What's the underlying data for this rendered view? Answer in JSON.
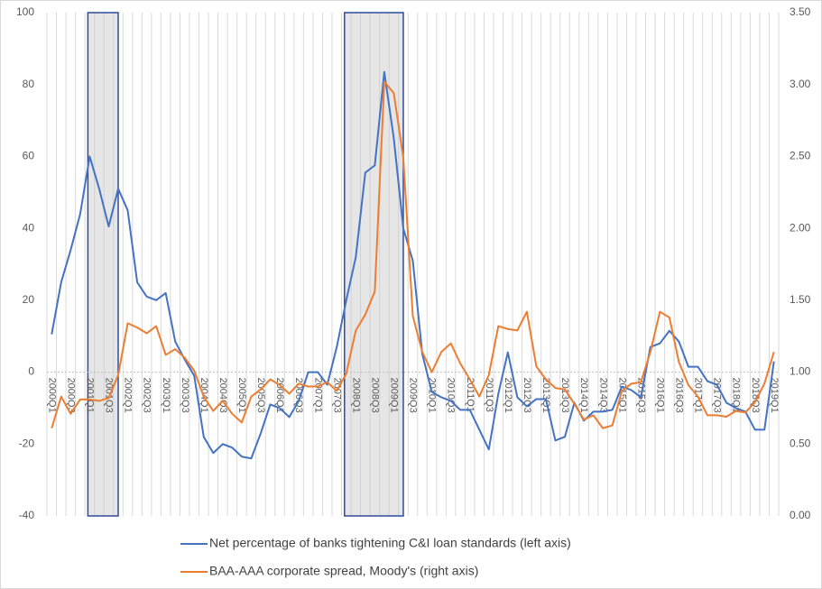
{
  "chart_data": {
    "type": "line",
    "categories": [
      "2000Q1",
      null,
      "2000Q3",
      null,
      "2001Q1",
      null,
      "2001Q3",
      null,
      "2002Q1",
      null,
      "2002Q3",
      null,
      "2003Q1",
      null,
      "2003Q3",
      null,
      "2004Q1",
      null,
      "2004Q3",
      null,
      "2005Q1",
      null,
      "2005Q3",
      null,
      "2006Q1",
      null,
      "2006Q3",
      null,
      "2007Q1",
      null,
      "2007Q3",
      null,
      "2008Q1",
      null,
      "2008Q3",
      null,
      "2009Q1",
      null,
      "2009Q3",
      null,
      "2010Q1",
      null,
      "2010Q3",
      null,
      "2011Q1",
      null,
      "2011Q3",
      null,
      "2012Q1",
      null,
      "2012Q3",
      null,
      "2013Q1",
      null,
      "2013Q3",
      null,
      "2014Q1",
      null,
      "2014Q3",
      null,
      "2015Q1",
      null,
      "2015Q3",
      null,
      "2016Q1",
      null,
      "2016Q3",
      null,
      "2017Q1",
      null,
      "2017Q3",
      null,
      "2018Q1",
      null,
      "2018Q3",
      null,
      "2019Q1"
    ],
    "series": [
      {
        "name": "Net percentage of  banks tightening C&I loan standards (left axis)",
        "color": "#4472c4",
        "axis": "y",
        "values": [
          10.5,
          25,
          34,
          44,
          60,
          51,
          40.5,
          51,
          45,
          25,
          21,
          20,
          22,
          8.5,
          3.5,
          -1,
          -18,
          -22.5,
          -20,
          -21,
          -23.5,
          -24,
          -17,
          -9,
          -10,
          -12.5,
          -8,
          0,
          0,
          -3.5,
          7,
          20,
          32,
          55.5,
          57.5,
          83.5,
          65,
          40,
          31,
          5,
          -5.5,
          -7,
          -8,
          -10.5,
          -10.5,
          -16,
          -21.5,
          -6,
          5.5,
          -7,
          -9.5,
          -7.5,
          -7.5,
          -19,
          -18,
          -8.5,
          -13.5,
          -11,
          -11,
          -10.5,
          -4,
          -5,
          -7,
          7,
          8,
          11.5,
          8.5,
          1.5,
          1.5,
          -2.5,
          -3.5,
          -8.5,
          -10,
          -11,
          -16,
          -16,
          3
        ]
      },
      {
        "name": "BAA-AAA corporate spread, Moody's (right axis)",
        "color": "#ed7d31",
        "axis": "y2",
        "values": [
          0.61,
          0.83,
          0.71,
          0.81,
          0.81,
          0.8,
          0.82,
          0.98,
          1.34,
          1.31,
          1.27,
          1.32,
          1.12,
          1.16,
          1.1,
          1.01,
          0.83,
          0.73,
          0.8,
          0.71,
          0.65,
          0.83,
          0.88,
          0.95,
          0.91,
          0.85,
          0.92,
          0.9,
          0.9,
          0.93,
          0.87,
          0.99,
          1.29,
          1.4,
          1.56,
          3.02,
          2.94,
          2.49,
          1.39,
          1.14,
          1.0,
          1.14,
          1.2,
          1.06,
          0.95,
          0.83,
          0.98,
          1.32,
          1.3,
          1.29,
          1.42,
          1.04,
          0.95,
          0.89,
          0.88,
          0.78,
          0.67,
          0.7,
          0.61,
          0.63,
          0.87,
          0.92,
          0.93,
          1.14,
          1.42,
          1.38,
          1.07,
          0.91,
          0.83,
          0.7,
          0.7,
          0.69,
          0.73,
          0.72,
          0.79,
          0.92,
          1.14
        ]
      }
    ],
    "ylim": [
      -40,
      100
    ],
    "yticks": [
      -40,
      -20,
      0,
      20,
      40,
      60,
      80,
      100
    ],
    "y2lim": [
      0,
      3.5
    ],
    "y2ticks": [
      {
        "value": 0,
        "label": "0.00"
      },
      {
        "value": 0.5,
        "label": "0.50"
      },
      {
        "value": 1,
        "label": "1.00"
      },
      {
        "value": 1.5,
        "label": "1.50"
      },
      {
        "value": 2,
        "label": "2.00"
      },
      {
        "value": 2.5,
        "label": "2.50"
      },
      {
        "value": 3,
        "label": "3.00"
      },
      {
        "value": 3.5,
        "label": "3.50"
      }
    ],
    "shaded_regions": [
      [
        4,
        7
      ],
      [
        31,
        37
      ]
    ],
    "grid": true,
    "legend": "bottom"
  }
}
